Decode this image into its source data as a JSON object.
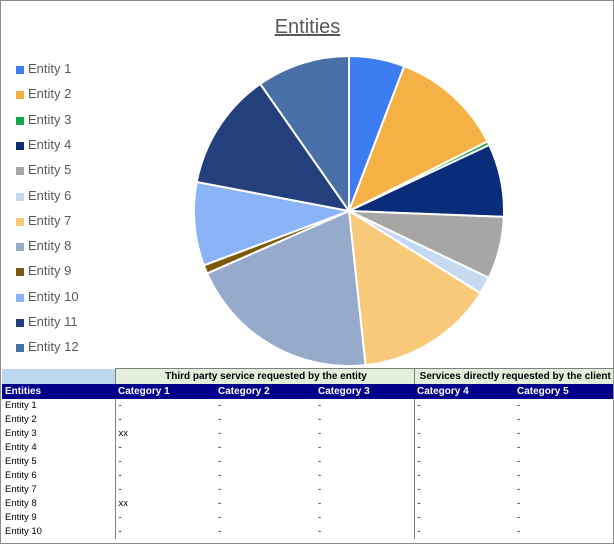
{
  "chart_data": {
    "type": "pie",
    "title": "Entities",
    "categories": [
      "Entity 1",
      "Entity 2",
      "Entity 3",
      "Entity 4",
      "Entity 5",
      "Entity 6",
      "Entity 7",
      "Entity 8",
      "Entity 9",
      "Entity 10",
      "Entity 11",
      "Entity 12"
    ],
    "values": [
      5.8,
      11.8,
      0.4,
      7.6,
      6.5,
      1.8,
      14.4,
      20.1,
      0.9,
      8.7,
      12.3,
      9.7
    ],
    "colors": [
      "#3c7df1",
      "#f5b145",
      "#16a34a",
      "#0a2d7a",
      "#a6a6a6",
      "#c5daf0",
      "#f9c97a",
      "#96abcb",
      "#7a5a0c",
      "#8bb3f7",
      "#24407c",
      "#486fa6"
    ],
    "legend_position": "left"
  },
  "table": {
    "group_headers": [
      "Third party service requested by the entity",
      "Services directly requested by the client"
    ],
    "columns": [
      "Entities",
      "Category 1",
      "Category 2",
      "Category 3",
      "Category 4",
      "Category 5"
    ],
    "rows": [
      [
        "Entity 1",
        "-",
        "-",
        "-",
        "-",
        "-"
      ],
      [
        "Entity 2",
        "-",
        "-",
        "-",
        "-",
        "-"
      ],
      [
        "Entity 3",
        "xx",
        "-",
        "-",
        "-",
        "-"
      ],
      [
        "Entity 4",
        "-",
        "-",
        "-",
        "-",
        "-"
      ],
      [
        "Entity 5",
        "-",
        "-",
        "-",
        "-",
        "-"
      ],
      [
        "Entity 6",
        "-",
        "-",
        "-",
        "-",
        "-"
      ],
      [
        "Entity 7",
        "-",
        "-",
        "-",
        "-",
        "-"
      ],
      [
        "Entity 8",
        "xx",
        "-",
        "-",
        "-",
        "-"
      ],
      [
        "Entity 9",
        "-",
        "-",
        "-",
        "-",
        "-"
      ],
      [
        "Entity 10",
        "-",
        "-",
        "-",
        "-",
        "-"
      ]
    ]
  }
}
